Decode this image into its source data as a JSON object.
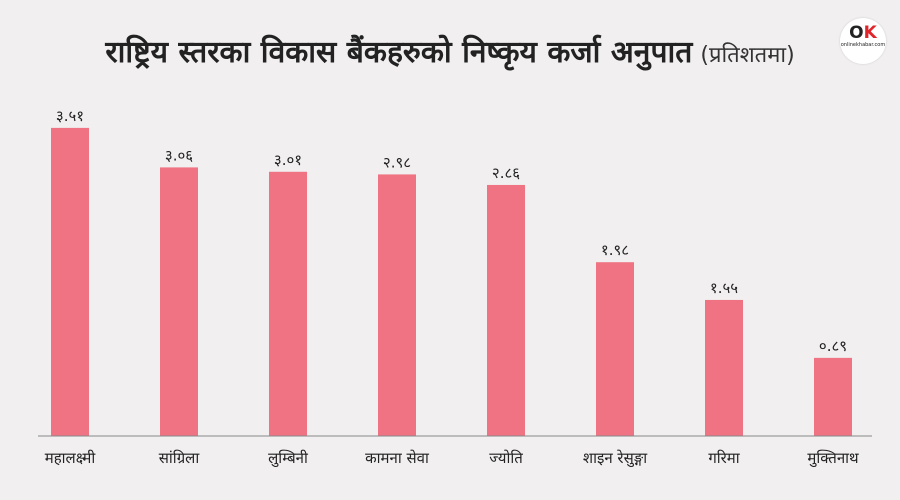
{
  "header": {
    "title": "राष्ट्रिय स्तरका विकास बैंकहरुको निष्कृय कर्जा अनुपात",
    "unit": "(प्रतिशतमा)"
  },
  "logo": {
    "mark_o": "O",
    "mark_k": "K",
    "text": "onlinekhabar.com"
  },
  "colors": {
    "bar": "#f07383",
    "background": "#f1efef",
    "axis": "#888888",
    "text": "#222222"
  },
  "chart_data": {
    "type": "bar",
    "title": "राष्ट्रिय स्तरका विकास बैंकहरुको निष्कृय कर्जा अनुपात (प्रतिशतमा)",
    "categories": [
      "महालक्ष्मी",
      "सांग्रिला",
      "लुम्बिनी",
      "कामना  सेवा",
      "ज्योति",
      "शाइन  रेसुङ्गा",
      "गरिमा",
      "मुक्तिनाथ"
    ],
    "values": [
      3.51,
      3.06,
      3.01,
      2.98,
      2.86,
      1.98,
      1.55,
      0.89
    ],
    "value_labels": [
      "३.५१",
      "३.०६",
      "३.०१",
      "२.९८",
      "२.८६",
      "१.९८",
      "१.५५",
      "०.८९"
    ],
    "ylim": [
      0,
      3.7
    ],
    "grid": false,
    "legend": "none"
  }
}
